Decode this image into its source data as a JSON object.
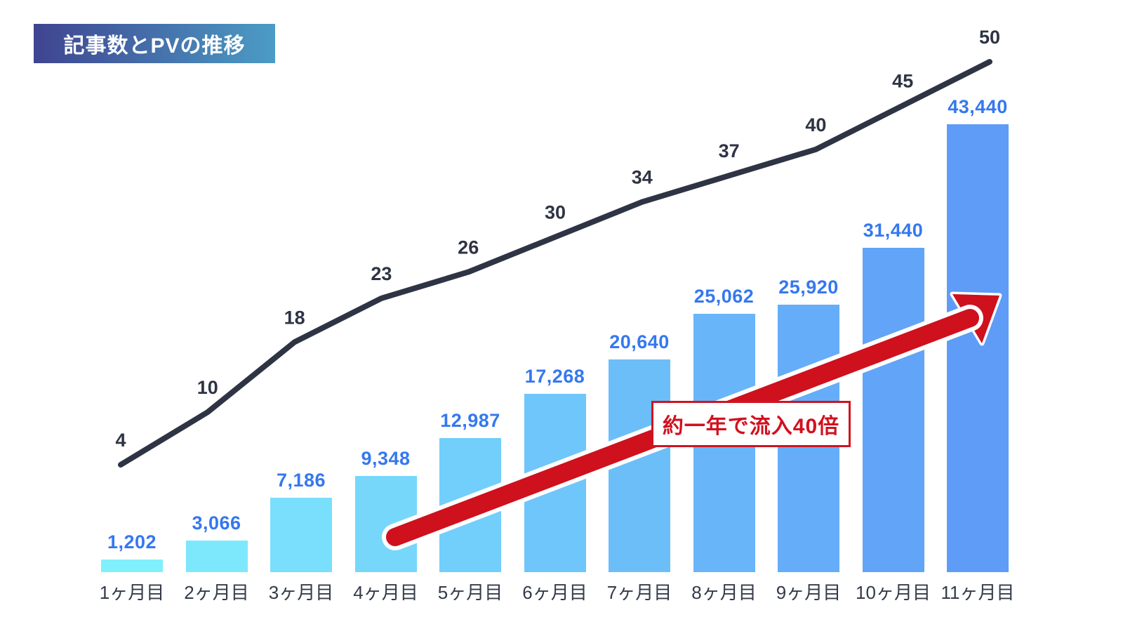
{
  "title": "記事数とPVの推移",
  "annotation": {
    "text": "約一年で流入40倍"
  },
  "colors": {
    "badge_gradient_left": "#3f4490",
    "badge_gradient_right": "#4b9cc5",
    "bar_gradient_start": "#80f0fd",
    "bar_gradient_end": "#5e9cf7",
    "bar_value_label": "#3578ef",
    "line": "#2e3444",
    "line_label": "#2e3444",
    "month_label": "#333b49",
    "arrow_red": "#cf101d",
    "callout_red": "#d2101f"
  },
  "chart_data": {
    "type": "bar",
    "combo": "bar+line",
    "title": "記事数とPVの推移",
    "categories": [
      "1ヶ月目",
      "2ヶ月目",
      "3ヶ月目",
      "4ヶ月目",
      "5ヶ月目",
      "6ヶ月目",
      "7ヶ月目",
      "8ヶ月目",
      "9ヶ月目",
      "10ヶ月目",
      "11ヶ月目"
    ],
    "series": [
      {
        "name": "PV",
        "type": "bar",
        "values": [
          1202,
          3066,
          7186,
          9348,
          12987,
          17268,
          20640,
          25062,
          25920,
          31440,
          43440
        ]
      },
      {
        "name": "記事数",
        "type": "line",
        "values": [
          4,
          10,
          18,
          23,
          26,
          30,
          34,
          37,
          40,
          45,
          50
        ]
      }
    ],
    "xlabel": "",
    "ylabel": "",
    "ylim_bar": [
      0,
      43440
    ],
    "ylim_line": [
      0,
      50
    ],
    "grid": false,
    "legend": "none",
    "data_labels": true,
    "annotation_text": "約一年で流入40倍"
  }
}
